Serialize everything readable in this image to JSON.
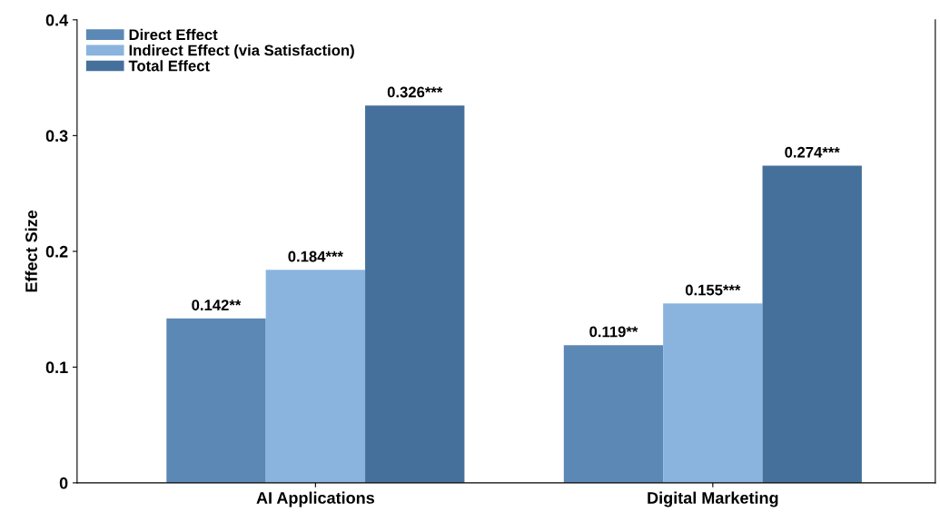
{
  "chart_data": {
    "type": "bar",
    "ylabel": "Effect Size",
    "categories": [
      "AI Applications",
      "Digital Marketing"
    ],
    "series": [
      {
        "name": "Direct Effect",
        "color": "#5b88b5",
        "values": [
          0.142,
          0.119
        ],
        "value_labels": [
          "0.142**",
          "0.119**"
        ]
      },
      {
        "name": "Indirect Effect (via Satisfaction)",
        "color": "#8ab4de",
        "values": [
          0.184,
          0.155
        ],
        "value_labels": [
          "0.184***",
          "0.155***"
        ]
      },
      {
        "name": "Total Effect",
        "color": "#46709c",
        "values": [
          0.326,
          0.274
        ],
        "value_labels": [
          "0.326***",
          "0.274***"
        ]
      }
    ],
    "ylim": [
      0,
      0.4
    ],
    "yticks": [
      0,
      0.1,
      0.2,
      0.3,
      0.4
    ],
    "grid": false,
    "legend": "top left"
  }
}
